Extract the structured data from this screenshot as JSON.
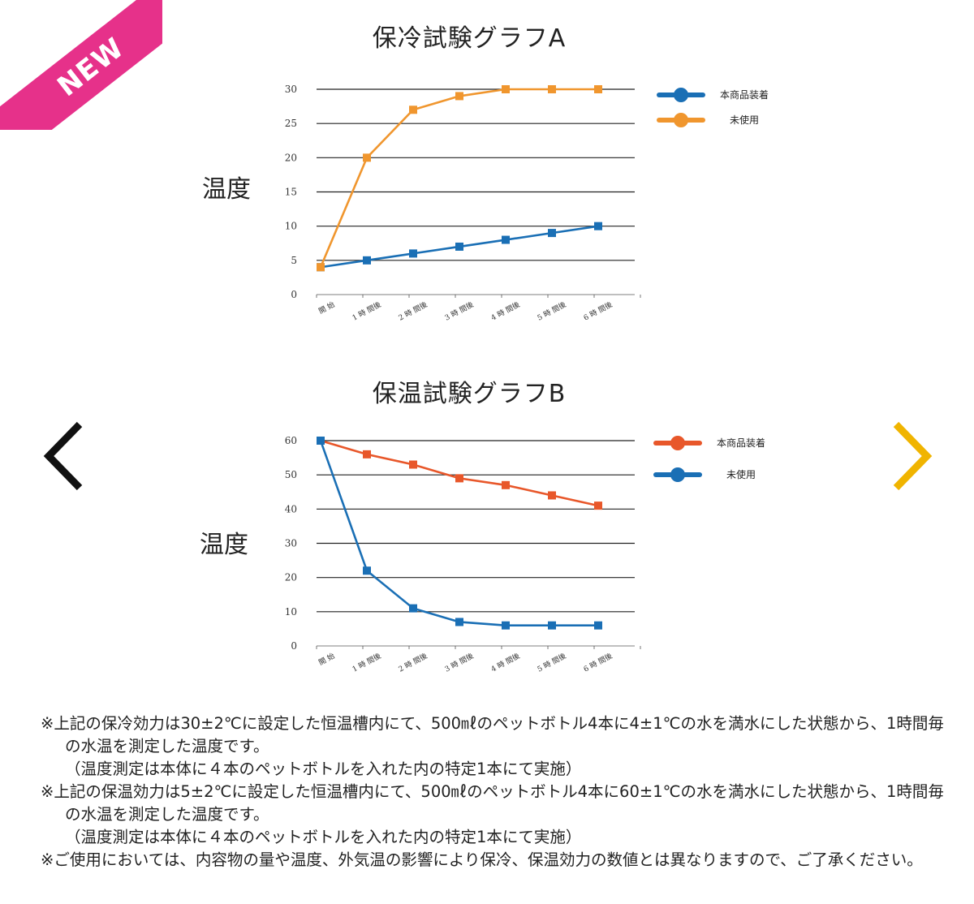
{
  "badge": {
    "label": "NEW",
    "color": "#e6318a"
  },
  "nav": {
    "prev_icon": "chevron-left-icon",
    "next_icon": "chevron-right-icon",
    "prev_color": "#111111",
    "next_color": "#f0b400"
  },
  "chart_data": [
    {
      "type": "line",
      "title": "保冷試験グラフA",
      "ylabel": "温度",
      "categories": [
        "開 始",
        "1 時 間後",
        "2 時 間後",
        "3 時 間後",
        "4 時 間後",
        "5 時 間後",
        "6 時 間後"
      ],
      "yticks": [
        0,
        5,
        10,
        15,
        20,
        25,
        30
      ],
      "ylim": [
        0,
        30
      ],
      "grid": true,
      "legend": "right",
      "series": [
        {
          "name": "本商品装着",
          "color": "#1a6fb5",
          "values": [
            4,
            5,
            6,
            7,
            8,
            9,
            10
          ]
        },
        {
          "name": "未使用",
          "color": "#f0962e",
          "values": [
            4,
            20,
            27,
            29,
            30,
            30,
            30
          ]
        }
      ]
    },
    {
      "type": "line",
      "title": "保温試験グラフB",
      "ylabel": "温度",
      "categories": [
        "開 始",
        "1 時 間後",
        "2 時 間後",
        "3 時 間後",
        "4 時 間後",
        "5 時 間後",
        "6 時 間後"
      ],
      "yticks": [
        0,
        10,
        20,
        30,
        40,
        50,
        60
      ],
      "ylim": [
        0,
        60
      ],
      "grid": true,
      "legend": "right",
      "series": [
        {
          "name": "本商品装着",
          "color": "#e8572a",
          "values": [
            60,
            56,
            53,
            49,
            47,
            44,
            41
          ]
        },
        {
          "name": "未使用",
          "color": "#1a6fb5",
          "values": [
            60,
            22,
            11,
            7,
            6,
            6,
            6
          ]
        }
      ]
    }
  ],
  "notes": {
    "n1": "※上記の保冷効力は30±2℃に設定した恒温槽内にて、500㎖のペットボトル4本に4±1℃の水を満水にした状態から、1時間毎の水温を測定した温度です。",
    "n1_sub": "（温度測定は本体に４本のペットボトルを入れた内の特定1本にて実施）",
    "n2": "※上記の保温効力は5±2℃に設定した恒温槽内にて、500㎖のペットボトル4本に60±1℃の水を満水にした状態から、1時間毎の水温を測定した温度です。",
    "n2_sub": "（温度測定は本体に４本のペットボトルを入れた内の特定1本にて実施）",
    "n3": "※ご使用においては、内容物の量や温度、外気温の影響により保冷、保温効力の数値とは異なりますので、ご了承ください。"
  }
}
